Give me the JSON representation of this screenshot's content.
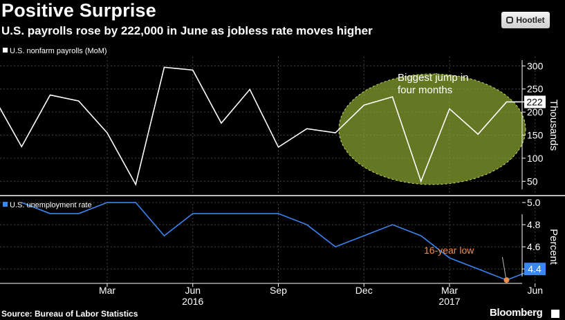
{
  "header": {
    "title": "Positive Surprise",
    "subtitle": "U.S. payrolls rose by 222,000 in June as jobless rate moves higher",
    "badge_main": "Hootlet",
    "badge_icon": "owl-icon"
  },
  "footer": {
    "source": "Source: Bureau of Labor Statistics",
    "brand": "Bloomberg",
    "brand_icon": "bloomberg-logo-icon"
  },
  "chart_data": [
    {
      "type": "line",
      "legend": "U.S. nonfarm payrolls (MoM)",
      "ylabel": "Thousands",
      "ylim": [
        25,
        320
      ],
      "yticks": [
        "50",
        "100",
        "150",
        "200",
        "250",
        "300"
      ],
      "color": "#ffffff",
      "last_value_label": "222",
      "annotation": "Biggest jump in four months",
      "highlight_color": "#8aa632",
      "x": [
        "2015-11",
        "2015-12",
        "2016-01",
        "2016-02",
        "2016-03",
        "2016-04",
        "2016-05",
        "2016-06",
        "2016-07",
        "2016-08",
        "2016-09",
        "2016-10",
        "2016-11",
        "2016-12",
        "2017-01",
        "2017-02",
        "2017-03",
        "2017-04",
        "2017-05",
        "2017-06"
      ],
      "values": [
        235,
        125,
        237,
        224,
        155,
        43,
        297,
        291,
        176,
        249,
        124,
        164,
        155,
        215,
        233,
        50,
        207,
        152,
        222,
        222
      ],
      "series": [
        {
          "name": "U.S. nonfarm payrolls (MoM)",
          "x": [
            "2015-11",
            "2015-12",
            "2016-01",
            "2016-02",
            "2016-03",
            "2016-04",
            "2016-05",
            "2016-06",
            "2016-07",
            "2016-08",
            "2016-09",
            "2016-10",
            "2016-11",
            "2016-12",
            "2017-01",
            "2017-02",
            "2017-03",
            "2017-04",
            "2017-05",
            "2017-06"
          ],
          "values": [
            235,
            125,
            237,
            224,
            155,
            43,
            297,
            291,
            176,
            249,
            124,
            164,
            155,
            215,
            233,
            50,
            207,
            152,
            222,
            222
          ]
        }
      ]
    },
    {
      "type": "line",
      "legend": "U.S. unemployment rate",
      "ylabel": "Percent",
      "ylim": [
        4.27,
        5.05
      ],
      "yticks": [
        "5.0",
        "4.8",
        "4.6",
        "4.4"
      ],
      "color": "#3a87f2",
      "last_value_label": "4.4",
      "annotation": "16-year low",
      "annotation_color": "#f28e4b",
      "low_point_month": "2017-05",
      "low_point_value": 4.3,
      "x": [
        "2015-12",
        "2016-01",
        "2016-02",
        "2016-03",
        "2016-04",
        "2016-05",
        "2016-06",
        "2016-07",
        "2016-08",
        "2016-09",
        "2016-10",
        "2016-11",
        "2016-12",
        "2017-01",
        "2017-02",
        "2017-03",
        "2017-04",
        "2017-05",
        "2017-06"
      ],
      "values": [
        5.0,
        4.9,
        4.9,
        5.0,
        5.0,
        4.7,
        4.9,
        4.9,
        4.9,
        4.9,
        4.8,
        4.6,
        4.7,
        4.8,
        4.7,
        4.5,
        4.4,
        4.3,
        4.4
      ],
      "series": [
        {
          "name": "U.S. unemployment rate",
          "x": [
            "2015-12",
            "2016-01",
            "2016-02",
            "2016-03",
            "2016-04",
            "2016-05",
            "2016-06",
            "2016-07",
            "2016-08",
            "2016-09",
            "2016-10",
            "2016-11",
            "2016-12",
            "2017-01",
            "2017-02",
            "2017-03",
            "2017-04",
            "2017-05",
            "2017-06"
          ],
          "values": [
            5.0,
            4.9,
            4.9,
            5.0,
            5.0,
            4.7,
            4.9,
            4.9,
            4.9,
            4.9,
            4.8,
            4.6,
            4.7,
            4.8,
            4.7,
            4.5,
            4.4,
            4.3,
            4.4
          ]
        }
      ],
      "xticks": [
        "Mar",
        "Jun",
        "Sep",
        "Dec",
        "Mar",
        "Jun"
      ],
      "xtick_months": [
        "2016-03",
        "2016-06",
        "2016-09",
        "2016-12",
        "2017-03",
        "2017-06"
      ],
      "year_labels": [
        "2016",
        "2017"
      ],
      "year_label_months": [
        "2016-06",
        "2017-03"
      ]
    }
  ]
}
